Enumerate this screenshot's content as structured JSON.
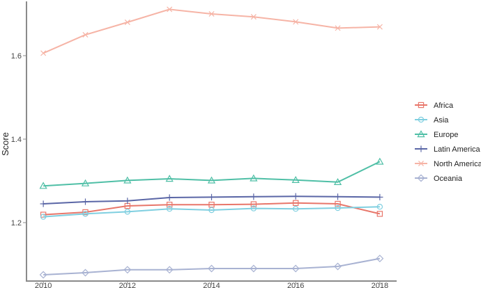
{
  "chart_data": {
    "type": "line",
    "title": "",
    "xlabel": "",
    "ylabel": "Score",
    "x": [
      2010,
      2011,
      2012,
      2013,
      2014,
      2015,
      2016,
      2017,
      2018
    ],
    "x_ticks": [
      "2010",
      "2012",
      "2014",
      "2016",
      "2018"
    ],
    "y_ticks": [
      "1.2",
      "1.4",
      "1.6"
    ],
    "xlim": [
      2009.6,
      2018.4
    ],
    "ylim": [
      1.06,
      1.73
    ],
    "grid": false,
    "legend_position": "right",
    "series": [
      {
        "name": "Africa",
        "marker": "square",
        "color": "#e8766a",
        "values": [
          1.219,
          1.225,
          1.24,
          1.243,
          1.243,
          1.244,
          1.247,
          1.245,
          1.221
        ]
      },
      {
        "name": "Asia",
        "marker": "circle",
        "color": "#7fcfe0",
        "values": [
          1.214,
          1.221,
          1.226,
          1.233,
          1.23,
          1.234,
          1.233,
          1.235,
          1.238
        ]
      },
      {
        "name": "Europe",
        "marker": "triangle",
        "color": "#4fbfa6",
        "values": [
          1.288,
          1.294,
          1.301,
          1.305,
          1.301,
          1.306,
          1.302,
          1.297,
          1.346
        ]
      },
      {
        "name": "Latin America",
        "marker": "plus",
        "color": "#5a66a6",
        "values": [
          1.245,
          1.25,
          1.252,
          1.26,
          1.261,
          1.262,
          1.263,
          1.262,
          1.261
        ]
      },
      {
        "name": "North America",
        "marker": "cross",
        "color": "#f6b4a6",
        "values": [
          1.606,
          1.65,
          1.68,
          1.711,
          1.7,
          1.693,
          1.681,
          1.666,
          1.669
        ]
      },
      {
        "name": "Oceania",
        "marker": "diamond",
        "color": "#a8b2d2",
        "values": [
          1.075,
          1.08,
          1.087,
          1.087,
          1.09,
          1.09,
          1.09,
          1.095,
          1.114
        ]
      }
    ]
  }
}
